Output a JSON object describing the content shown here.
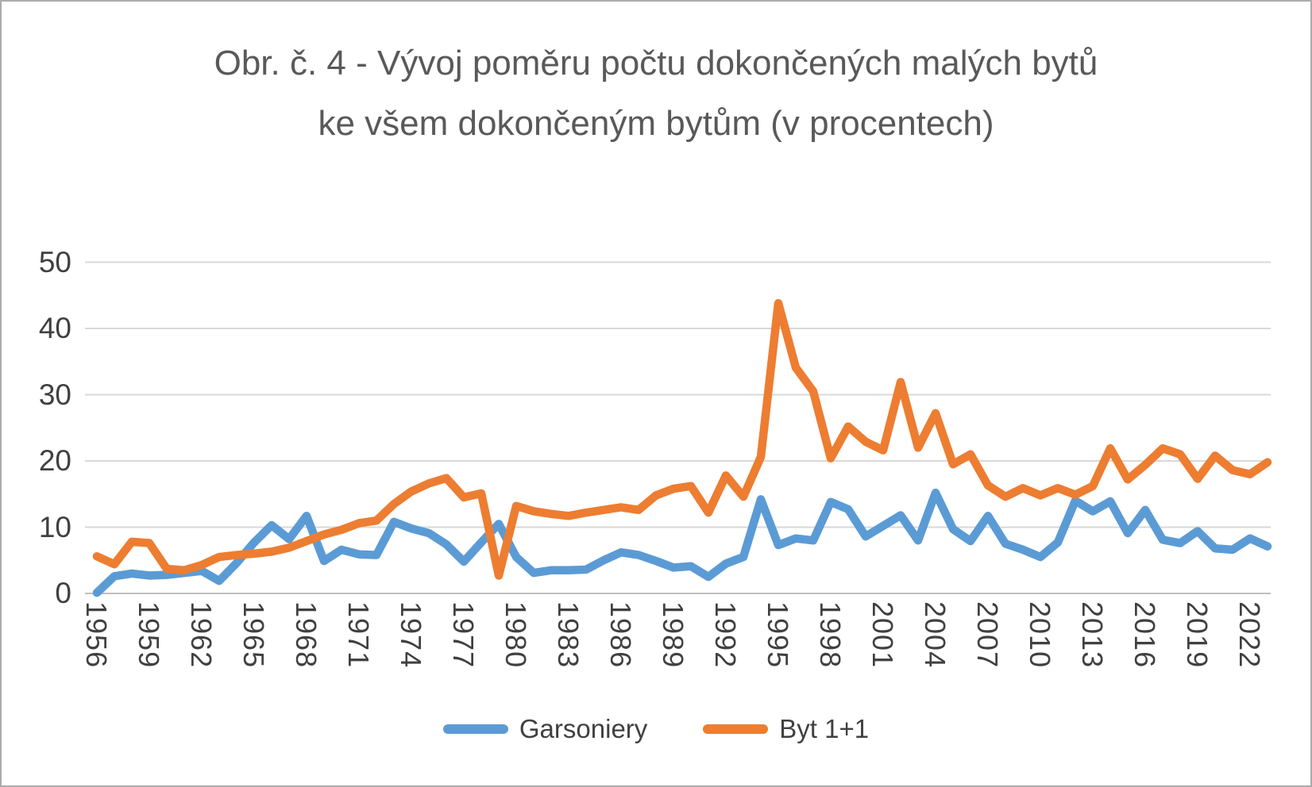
{
  "title": "Obr. č. 4 - Vývoj poměru počtu dokončených malých bytů ke všem dokončeným bytům (v procentech)",
  "chart_data": {
    "type": "line",
    "title": "Obr. č. 4 - Vývoj poměru počtu dokončených malých bytů ke všem dokončeným bytům (v procentech)",
    "xlabel": "",
    "ylabel": "",
    "ylim": [
      0,
      50
    ],
    "y_ticks": [
      0,
      10,
      20,
      30,
      40,
      50
    ],
    "grid": "horizontal",
    "legend_position": "bottom",
    "x": [
      1956,
      1957,
      1958,
      1959,
      1960,
      1961,
      1962,
      1963,
      1964,
      1965,
      1966,
      1967,
      1968,
      1969,
      1970,
      1971,
      1972,
      1973,
      1974,
      1975,
      1976,
      1977,
      1978,
      1979,
      1980,
      1981,
      1982,
      1983,
      1984,
      1985,
      1986,
      1987,
      1988,
      1989,
      1990,
      1991,
      1992,
      1993,
      1994,
      1995,
      1996,
      1997,
      1998,
      1999,
      2000,
      2001,
      2002,
      2003,
      2004,
      2005,
      2006,
      2007,
      2008,
      2009,
      2010,
      2011,
      2012,
      2013,
      2014,
      2015,
      2016,
      2017,
      2018,
      2019,
      2020,
      2021,
      2022,
      2023
    ],
    "x_tick_labels": [
      "1956",
      "1959",
      "1962",
      "1965",
      "1968",
      "1971",
      "1974",
      "1977",
      "1980",
      "1983",
      "1986",
      "1989",
      "1992",
      "1995",
      "1998",
      "2001",
      "2004",
      "2007",
      "2010",
      "2013",
      "2016",
      "2019",
      "2022"
    ],
    "series": [
      {
        "name": "Garsoniery",
        "color": "#5B9BD5",
        "values": [
          0.1,
          2.6,
          3.0,
          2.7,
          2.8,
          3.1,
          3.4,
          1.9,
          4.6,
          7.7,
          10.3,
          8.2,
          11.7,
          4.9,
          6.6,
          5.9,
          5.8,
          10.8,
          9.8,
          9.1,
          7.4,
          4.8,
          7.7,
          10.5,
          5.5,
          3.1,
          3.5,
          3.5,
          3.6,
          5.0,
          6.2,
          5.8,
          4.9,
          3.9,
          4.1,
          2.5,
          4.5,
          5.5,
          14.2,
          7.3,
          8.3,
          8.0,
          13.8,
          12.7,
          8.6,
          10.2,
          11.8,
          8.0,
          15.2,
          9.7,
          7.9,
          11.7,
          7.5,
          6.6,
          5.5,
          7.7,
          14.0,
          12.4,
          13.9,
          9.1,
          12.6,
          8.1,
          7.6,
          9.4,
          6.8,
          6.6,
          8.3,
          7.1
        ]
      },
      {
        "name": "Byt 1+1",
        "color": "#ED7D31",
        "values": [
          5.6,
          4.4,
          7.8,
          7.6,
          3.7,
          3.5,
          4.3,
          5.5,
          5.8,
          6.0,
          6.3,
          6.9,
          7.9,
          8.9,
          9.6,
          10.6,
          11.0,
          13.5,
          15.4,
          16.6,
          17.4,
          14.5,
          15.1,
          2.7,
          13.2,
          12.4,
          12.0,
          11.7,
          12.2,
          12.6,
          13.0,
          12.6,
          14.8,
          15.8,
          16.2,
          12.2,
          17.8,
          14.6,
          20.6,
          43.8,
          34.1,
          30.5,
          20.4,
          25.2,
          22.9,
          21.6,
          31.9,
          22.0,
          27.2,
          19.5,
          21.0,
          16.3,
          14.6,
          15.9,
          14.8,
          15.9,
          14.9,
          16.2,
          21.9,
          17.2,
          19.4,
          21.9,
          21.0,
          17.3,
          20.8,
          18.6,
          18.0,
          19.8
        ]
      }
    ]
  },
  "colors": {
    "grid": "#D9D9D9",
    "axis_line": "#BFBFBF",
    "title_text": "#595959",
    "axis_text": "#404040",
    "background": "#FFFFFF",
    "border": "#ABABAB"
  }
}
